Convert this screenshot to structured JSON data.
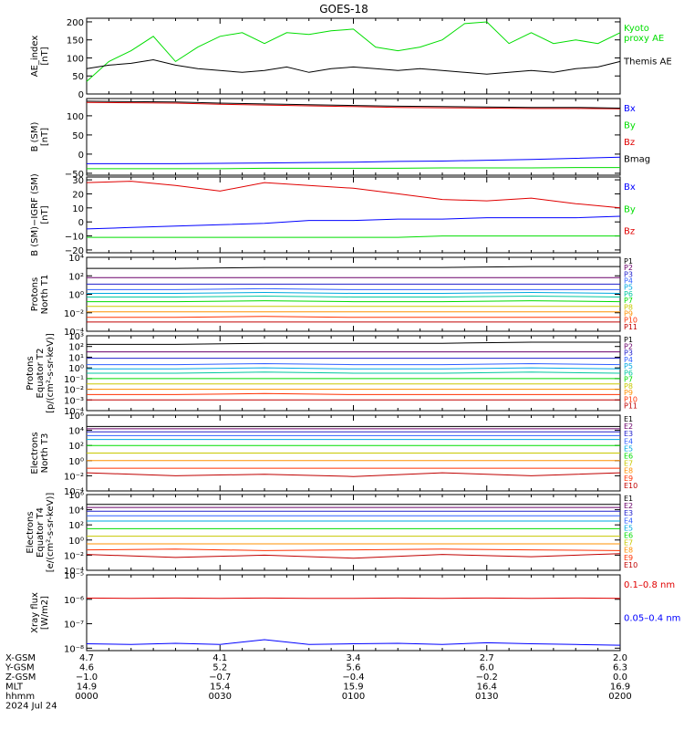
{
  "title": "GOES-18",
  "colors": {
    "black": "#000000",
    "green": "#00dd00",
    "blue": "#0000ff",
    "red": "#e00000",
    "darkred": "#b00000",
    "p1": "#000000",
    "p2": "#6a006a",
    "p3": "#2020cc",
    "p4": "#3060ff",
    "p5": "#00a8e0",
    "p6": "#00c8a0",
    "p7": "#00dd00",
    "p8": "#c8c800",
    "p9": "#ff9000",
    "p10": "#ff3000",
    "p11": "#c00000"
  },
  "xaxis": {
    "ticks": [
      "0000",
      "0030",
      "0100",
      "0130",
      "0200"
    ],
    "rows": [
      {
        "label": "X-GSM",
        "values": [
          "4.7",
          "4.1",
          "3.4",
          "2.7",
          "2.0"
        ]
      },
      {
        "label": "Y-GSM",
        "values": [
          "4.6",
          "5.2",
          "5.6",
          "6.0",
          "6.3"
        ]
      },
      {
        "label": "Z-GSM",
        "values": [
          "−1.0",
          "−0.7",
          "−0.4",
          "−0.2",
          "0.0"
        ]
      },
      {
        "label": "MLT",
        "values": [
          "14.9",
          "15.4",
          "15.9",
          "16.4",
          "16.9"
        ]
      },
      {
        "label": "hhmm",
        "values": [
          "0000",
          "0030",
          "0100",
          "0130",
          "0200"
        ]
      }
    ],
    "date": "2024 Jul 24"
  },
  "chart_data": [
    {
      "type": "line",
      "ylabel": "AE_index\n[nT]",
      "ylim": [
        0,
        210
      ],
      "scale": "linear",
      "yticks": [
        "0",
        "50",
        "100",
        "150",
        "200"
      ],
      "ytick_values": [
        0,
        50,
        100,
        150,
        200
      ],
      "x": [
        0,
        5,
        10,
        15,
        20,
        25,
        30,
        35,
        40,
        45,
        50,
        55,
        60,
        65,
        70,
        75,
        80,
        85,
        90,
        95,
        100,
        105,
        110,
        115,
        120
      ],
      "series": [
        {
          "name": "Kyoto\nproxy AE",
          "color": "green",
          "values": [
            35,
            90,
            120,
            160,
            90,
            130,
            160,
            170,
            140,
            170,
            165,
            175,
            180,
            130,
            120,
            130,
            150,
            195,
            200,
            140,
            170,
            140,
            150,
            140,
            170
          ]
        },
        {
          "name": "Themis AE",
          "color": "black",
          "values": [
            70,
            80,
            85,
            95,
            80,
            70,
            65,
            60,
            65,
            75,
            60,
            70,
            75,
            70,
            65,
            70,
            65,
            60,
            55,
            60,
            65,
            60,
            70,
            75,
            90
          ]
        }
      ]
    },
    {
      "type": "line",
      "ylabel": "B (SM)\n[nT]",
      "ylim": [
        -55,
        145
      ],
      "scale": "linear",
      "yticks": [
        "−50",
        "0",
        "50",
        "100"
      ],
      "ytick_values": [
        -50,
        0,
        50,
        100
      ],
      "x": [
        0,
        10,
        20,
        30,
        40,
        50,
        60,
        70,
        80,
        90,
        100,
        110,
        120
      ],
      "series": [
        {
          "name": "Bx",
          "color": "blue",
          "values": [
            -25,
            -25,
            -25,
            -24,
            -23,
            -22,
            -21,
            -19,
            -18,
            -16,
            -14,
            -11,
            -8
          ]
        },
        {
          "name": "By",
          "color": "green",
          "values": [
            -38,
            -38,
            -38,
            -38,
            -37,
            -37,
            -37,
            -37,
            -36,
            -36,
            -36,
            -35,
            -35
          ]
        },
        {
          "name": "Bz",
          "color": "red",
          "values": [
            135,
            134,
            133,
            130,
            128,
            126,
            124,
            122,
            121,
            120,
            119,
            119,
            118
          ]
        },
        {
          "name": "Bmag",
          "color": "black",
          "values": [
            138,
            137,
            136,
            133,
            131,
            129,
            127,
            125,
            124,
            123,
            122,
            122,
            120
          ]
        }
      ]
    },
    {
      "type": "line",
      "ylabel": "B (SM)−IGRF (SM)\n[nT]",
      "ylim": [
        -22,
        32
      ],
      "scale": "linear",
      "yticks": [
        "−20",
        "−10",
        "0",
        "10",
        "20",
        "30"
      ],
      "ytick_values": [
        -20,
        -10,
        0,
        10,
        20,
        30
      ],
      "x": [
        0,
        10,
        20,
        30,
        40,
        50,
        60,
        70,
        80,
        90,
        100,
        110,
        120
      ],
      "series": [
        {
          "name": "Bx",
          "color": "blue",
          "values": [
            -5,
            -4,
            -3,
            -2,
            -1,
            1,
            1,
            2,
            2,
            3,
            3,
            3,
            4
          ]
        },
        {
          "name": "By",
          "color": "green",
          "values": [
            -11,
            -11,
            -11,
            -11,
            -11,
            -11,
            -11,
            -11,
            -10,
            -10,
            -10,
            -10,
            -10
          ]
        },
        {
          "name": "Bz",
          "color": "red",
          "values": [
            28,
            29,
            26,
            22,
            28,
            26,
            24,
            20,
            16,
            15,
            17,
            13,
            10
          ]
        }
      ]
    },
    {
      "type": "line",
      "ylabel": "Protons\nNorth T1",
      "ylim": [
        -4,
        4
      ],
      "scale": "log",
      "yticks": [
        "10⁴",
        "10²",
        "10⁰",
        "10⁻²",
        "10⁻⁴"
      ],
      "ytick_values": [
        4,
        2,
        0,
        -2,
        -4
      ],
      "x": [
        0,
        20,
        40,
        60,
        80,
        100,
        120
      ],
      "series": [
        {
          "name": "P1",
          "color": "p1",
          "values": [
            2.8,
            2.8,
            2.9,
            2.9,
            2.9,
            3.0,
            3.0
          ]
        },
        {
          "name": "P2",
          "color": "p2",
          "values": [
            1.8,
            1.8,
            1.8,
            1.8,
            1.8,
            1.8,
            1.8
          ]
        },
        {
          "name": "P3",
          "color": "p3",
          "values": [
            1.1,
            1.1,
            1.1,
            1.1,
            1.1,
            1.1,
            1.1
          ]
        },
        {
          "name": "P4",
          "color": "p4",
          "values": [
            0.5,
            0.5,
            0.6,
            0.5,
            0.5,
            0.5,
            0.5
          ]
        },
        {
          "name": "P5",
          "color": "p5",
          "values": [
            0.1,
            0.1,
            0.2,
            0.1,
            0.1,
            0.2,
            0.1
          ]
        },
        {
          "name": "P6",
          "color": "p6",
          "values": [
            -0.3,
            -0.3,
            -0.2,
            -0.3,
            -0.3,
            -0.2,
            -0.3
          ]
        },
        {
          "name": "P7",
          "color": "p7",
          "values": [
            -0.8,
            -0.8,
            -0.7,
            -0.8,
            -0.8,
            -0.7,
            -0.8
          ]
        },
        {
          "name": "P8",
          "color": "p8",
          "values": [
            -1.3,
            -1.3,
            -1.3,
            -1.3,
            -1.3,
            -1.3,
            -1.3
          ]
        },
        {
          "name": "P9",
          "color": "p9",
          "values": [
            -1.9,
            -1.9,
            -1.9,
            -1.9,
            -1.9,
            -1.9,
            -1.9
          ]
        },
        {
          "name": "P10",
          "color": "p10",
          "values": [
            -2.5,
            -2.5,
            -2.4,
            -2.5,
            -2.5,
            -2.5,
            -2.5
          ]
        },
        {
          "name": "P11",
          "color": "p11",
          "values": [
            -3.0,
            -3.0,
            -3.0,
            -3.0,
            -3.0,
            -3.0,
            -3.0
          ]
        }
      ]
    },
    {
      "type": "line",
      "ylabel": "Protons\nEquator T2\n[p/(cm²-s-sr-keV)]",
      "ylim": [
        -4,
        3
      ],
      "scale": "log",
      "yticks": [
        "10³",
        "10²",
        "10¹",
        "10⁰",
        "10⁻¹",
        "10⁻²",
        "10⁻³",
        "10⁻⁴"
      ],
      "ytick_values": [
        3,
        2,
        1,
        0,
        -1,
        -2,
        -3,
        -4
      ],
      "x": [
        0,
        20,
        40,
        60,
        80,
        100,
        120
      ],
      "series": [
        {
          "name": "P1",
          "color": "p1",
          "values": [
            2.2,
            2.2,
            2.3,
            2.3,
            2.3,
            2.4,
            2.4
          ]
        },
        {
          "name": "P2",
          "color": "p2",
          "values": [
            1.5,
            1.5,
            1.5,
            1.5,
            1.5,
            1.5,
            1.5
          ]
        },
        {
          "name": "P3",
          "color": "p3",
          "values": [
            0.9,
            0.9,
            0.9,
            0.9,
            0.9,
            0.9,
            0.9
          ]
        },
        {
          "name": "P4",
          "color": "p4",
          "values": [
            0.3,
            0.3,
            0.4,
            0.3,
            0.3,
            0.4,
            0.3
          ]
        },
        {
          "name": "P5",
          "color": "p5",
          "values": [
            -0.1,
            -0.1,
            0.0,
            -0.1,
            -0.1,
            0.0,
            -0.1
          ]
        },
        {
          "name": "P6",
          "color": "p6",
          "values": [
            -0.5,
            -0.5,
            -0.4,
            -0.5,
            -0.5,
            -0.4,
            -0.5
          ]
        },
        {
          "name": "P7",
          "color": "p7",
          "values": [
            -1.0,
            -1.0,
            -1.0,
            -1.0,
            -1.0,
            -1.0,
            -1.0
          ]
        },
        {
          "name": "P8",
          "color": "p8",
          "values": [
            -1.5,
            -1.5,
            -1.5,
            -1.5,
            -1.5,
            -1.5,
            -1.5
          ]
        },
        {
          "name": "P9",
          "color": "p9",
          "values": [
            -2.0,
            -2.0,
            -2.0,
            -2.0,
            -2.0,
            -2.0,
            -2.0
          ]
        },
        {
          "name": "P10",
          "color": "p10",
          "values": [
            -2.5,
            -2.5,
            -2.4,
            -2.5,
            -2.5,
            -2.5,
            -2.5
          ]
        },
        {
          "name": "P11",
          "color": "p11",
          "values": [
            -3.0,
            -3.0,
            -3.0,
            -3.0,
            -3.0,
            -3.0,
            -3.0
          ]
        }
      ]
    },
    {
      "type": "line",
      "ylabel": "Electrons\nNorth T3",
      "ylim": [
        -4,
        6
      ],
      "scale": "log",
      "yticks": [
        "10⁶",
        "10⁴",
        "10²",
        "10⁰",
        "10⁻²",
        "10⁻⁴"
      ],
      "ytick_values": [
        6,
        4,
        2,
        0,
        -2,
        -4
      ],
      "x": [
        0,
        20,
        40,
        60,
        80,
        100,
        120
      ],
      "series": [
        {
          "name": "E1",
          "color": "p1",
          "values": [
            4.5,
            4.5,
            4.5,
            4.5,
            4.5,
            4.5,
            4.5
          ]
        },
        {
          "name": "E2",
          "color": "p2",
          "values": [
            4.2,
            4.2,
            4.2,
            4.2,
            4.2,
            4.2,
            4.2
          ]
        },
        {
          "name": "E3",
          "color": "p3",
          "values": [
            3.8,
            3.8,
            3.8,
            3.8,
            3.8,
            3.8,
            3.8
          ]
        },
        {
          "name": "E4",
          "color": "p4",
          "values": [
            3.3,
            3.3,
            3.3,
            3.3,
            3.3,
            3.3,
            3.3
          ]
        },
        {
          "name": "E5",
          "color": "p5",
          "values": [
            2.8,
            2.8,
            2.8,
            2.8,
            2.8,
            2.8,
            2.8
          ]
        },
        {
          "name": "E6",
          "color": "p7",
          "values": [
            2.0,
            2.0,
            2.0,
            2.0,
            2.0,
            2.0,
            2.0
          ]
        },
        {
          "name": "E7",
          "color": "p8",
          "values": [
            1.0,
            1.0,
            1.0,
            1.0,
            1.0,
            1.0,
            1.0
          ]
        },
        {
          "name": "E8",
          "color": "p9",
          "values": [
            0.0,
            0.0,
            0.0,
            0.0,
            0.0,
            0.0,
            0.0
          ]
        },
        {
          "name": "E9",
          "color": "p10",
          "values": [
            -1.0,
            -1.0,
            -1.0,
            -1.0,
            -1.0,
            -1.0,
            -1.0
          ]
        },
        {
          "name": "E10",
          "color": "p11",
          "values": [
            -1.6,
            -2.0,
            -1.8,
            -2.1,
            -1.6,
            -2.0,
            -1.6
          ]
        }
      ]
    },
    {
      "type": "line",
      "ylabel": "Electrons\nEquator T4\n[e/(cm²-s-sr-keV)]",
      "ylim": [
        -4,
        6
      ],
      "scale": "log",
      "yticks": [
        "10⁶",
        "10⁴",
        "10²",
        "10⁰",
        "10⁻²",
        "10⁻⁴"
      ],
      "ytick_values": [
        6,
        4,
        2,
        0,
        -2,
        -4
      ],
      "x": [
        0,
        20,
        40,
        60,
        80,
        100,
        120
      ],
      "series": [
        {
          "name": "E1",
          "color": "p1",
          "values": [
            4.7,
            4.7,
            4.7,
            4.7,
            4.7,
            4.7,
            4.7
          ]
        },
        {
          "name": "E2",
          "color": "p2",
          "values": [
            4.3,
            4.3,
            4.3,
            4.3,
            4.3,
            4.3,
            4.3
          ]
        },
        {
          "name": "E3",
          "color": "p3",
          "values": [
            3.8,
            3.8,
            3.8,
            3.8,
            3.8,
            3.8,
            3.8
          ]
        },
        {
          "name": "E4",
          "color": "p4",
          "values": [
            3.2,
            3.2,
            3.2,
            3.2,
            3.2,
            3.2,
            3.2
          ]
        },
        {
          "name": "E5",
          "color": "p5",
          "values": [
            2.5,
            2.5,
            2.5,
            2.5,
            2.5,
            2.5,
            2.5
          ]
        },
        {
          "name": "E6",
          "color": "p7",
          "values": [
            1.5,
            1.5,
            1.5,
            1.5,
            1.5,
            1.5,
            1.5
          ]
        },
        {
          "name": "E7",
          "color": "p8",
          "values": [
            0.5,
            0.5,
            0.5,
            0.5,
            0.5,
            0.5,
            0.5
          ]
        },
        {
          "name": "E8",
          "color": "p9",
          "values": [
            -0.5,
            -0.5,
            -0.5,
            -0.5,
            -0.5,
            -0.5,
            -0.5
          ]
        },
        {
          "name": "E9",
          "color": "p10",
          "values": [
            -1.3,
            -1.2,
            -1.4,
            -1.3,
            -1.2,
            -1.3,
            -1.4
          ]
        },
        {
          "name": "E10",
          "color": "p11",
          "values": [
            -1.9,
            -2.3,
            -2.0,
            -2.4,
            -1.9,
            -2.2,
            -1.8
          ]
        }
      ]
    },
    {
      "type": "line",
      "ylabel": "Xray flux\n[W/m2]",
      "ylim": [
        -8.1,
        -5
      ],
      "scale": "log",
      "yticks": [
        "10⁻⁵",
        "10⁻⁶",
        "10⁻⁷",
        "10⁻⁸"
      ],
      "ytick_values": [
        -5,
        -6,
        -7,
        -8
      ],
      "x": [
        0,
        10,
        20,
        30,
        40,
        50,
        60,
        70,
        80,
        90,
        100,
        110,
        120
      ],
      "series": [
        {
          "name": "0.1–0.8 nm",
          "color": "red",
          "values": [
            -5.95,
            -5.96,
            -5.95,
            -5.96,
            -5.95,
            -5.96,
            -5.96,
            -5.95,
            -5.96,
            -5.95,
            -5.96,
            -5.95,
            -5.96
          ]
        },
        {
          "name": "0.05–0.4 nm",
          "color": "blue",
          "values": [
            -7.82,
            -7.85,
            -7.8,
            -7.85,
            -7.65,
            -7.85,
            -7.82,
            -7.8,
            -7.85,
            -7.78,
            -7.82,
            -7.85,
            -7.88
          ]
        }
      ]
    }
  ]
}
